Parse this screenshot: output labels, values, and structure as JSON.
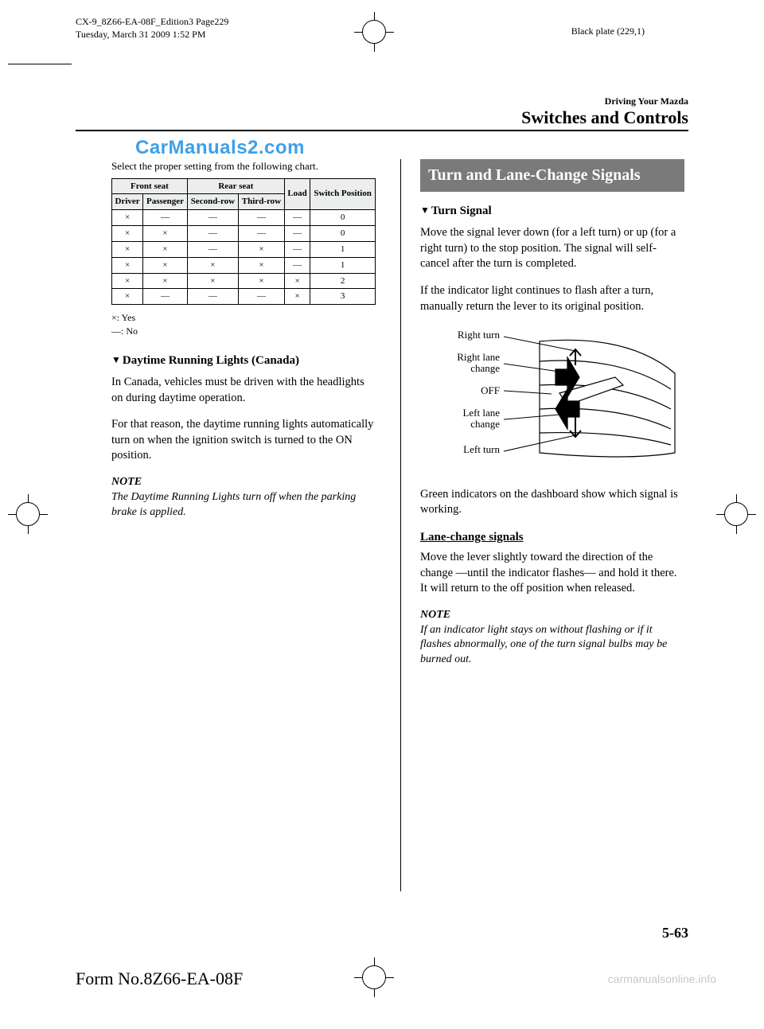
{
  "print": {
    "doc_id": "CX-9_8Z66-EA-08F_Edition3 Page229",
    "timestamp": "Tuesday, March 31 2009 1:52 PM",
    "plate": "Black plate (229,1)"
  },
  "watermarks": {
    "cm": "CarManuals2.com",
    "cmo": "carmanualsonline.info"
  },
  "header": {
    "chapter": "Driving Your Mazda",
    "section": "Switches and Controls"
  },
  "page_number": "5-63",
  "form_no": "Form No.8Z66-EA-08F",
  "left": {
    "lead": "Select the proper setting from the following chart.",
    "table": {
      "group_headers": [
        "Front seat",
        "Rear seat",
        "Load",
        "Switch Position"
      ],
      "sub_headers": [
        "Driver",
        "Passenger",
        "Second-row",
        "Third-row"
      ],
      "rows": [
        [
          "×",
          "―",
          "―",
          "―",
          "―",
          "0"
        ],
        [
          "×",
          "×",
          "―",
          "―",
          "―",
          "0"
        ],
        [
          "×",
          "×",
          "―",
          "×",
          "―",
          "1"
        ],
        [
          "×",
          "×",
          "×",
          "×",
          "―",
          "1"
        ],
        [
          "×",
          "×",
          "×",
          "×",
          "×",
          "2"
        ],
        [
          "×",
          "―",
          "―",
          "―",
          "×",
          "3"
        ]
      ]
    },
    "legend_yes": "×: Yes",
    "legend_no": "―: No",
    "sub1_title": "Daytime Running Lights (Canada)",
    "sub1_p1": "In Canada, vehicles must be driven with the headlights on during daytime operation.",
    "sub1_p2": "For that reason, the daytime running lights automatically turn on when the ignition switch is turned to the ON position.",
    "note_label": "NOTE",
    "note_text": "The Daytime Running Lights turn off when the parking brake is applied."
  },
  "right": {
    "block_title": "Turn and Lane-Change Signals",
    "sub_title": "Turn Signal",
    "p1": "Move the signal lever down (for a left turn) or up (for a right turn) to the stop position. The signal will self-cancel after the turn is completed.",
    "p2": "If the indicator light continues to flash after a turn, manually return the lever to its original position.",
    "diagram": {
      "labels": [
        "Right turn",
        "Right lane change",
        "OFF",
        "Left lane change",
        "Left turn"
      ]
    },
    "p3": "Green indicators on the dashboard show which signal is working.",
    "lane_heading": "Lane-change signals",
    "p4": "Move the lever slightly toward the direction of the change ―until the indicator flashes― and hold it there. It will return to the off position when released.",
    "note_label": "NOTE",
    "note_text": "If an indicator light stays on without flashing or if it flashes abnormally, one of the turn signal bulbs may be burned out."
  },
  "colors": {
    "section_block_bg": "#7a7a7a",
    "table_header_bg": "#eceded",
    "watermark_blue": "#3ea0e8",
    "watermark_gray": "#c8c8c8"
  }
}
